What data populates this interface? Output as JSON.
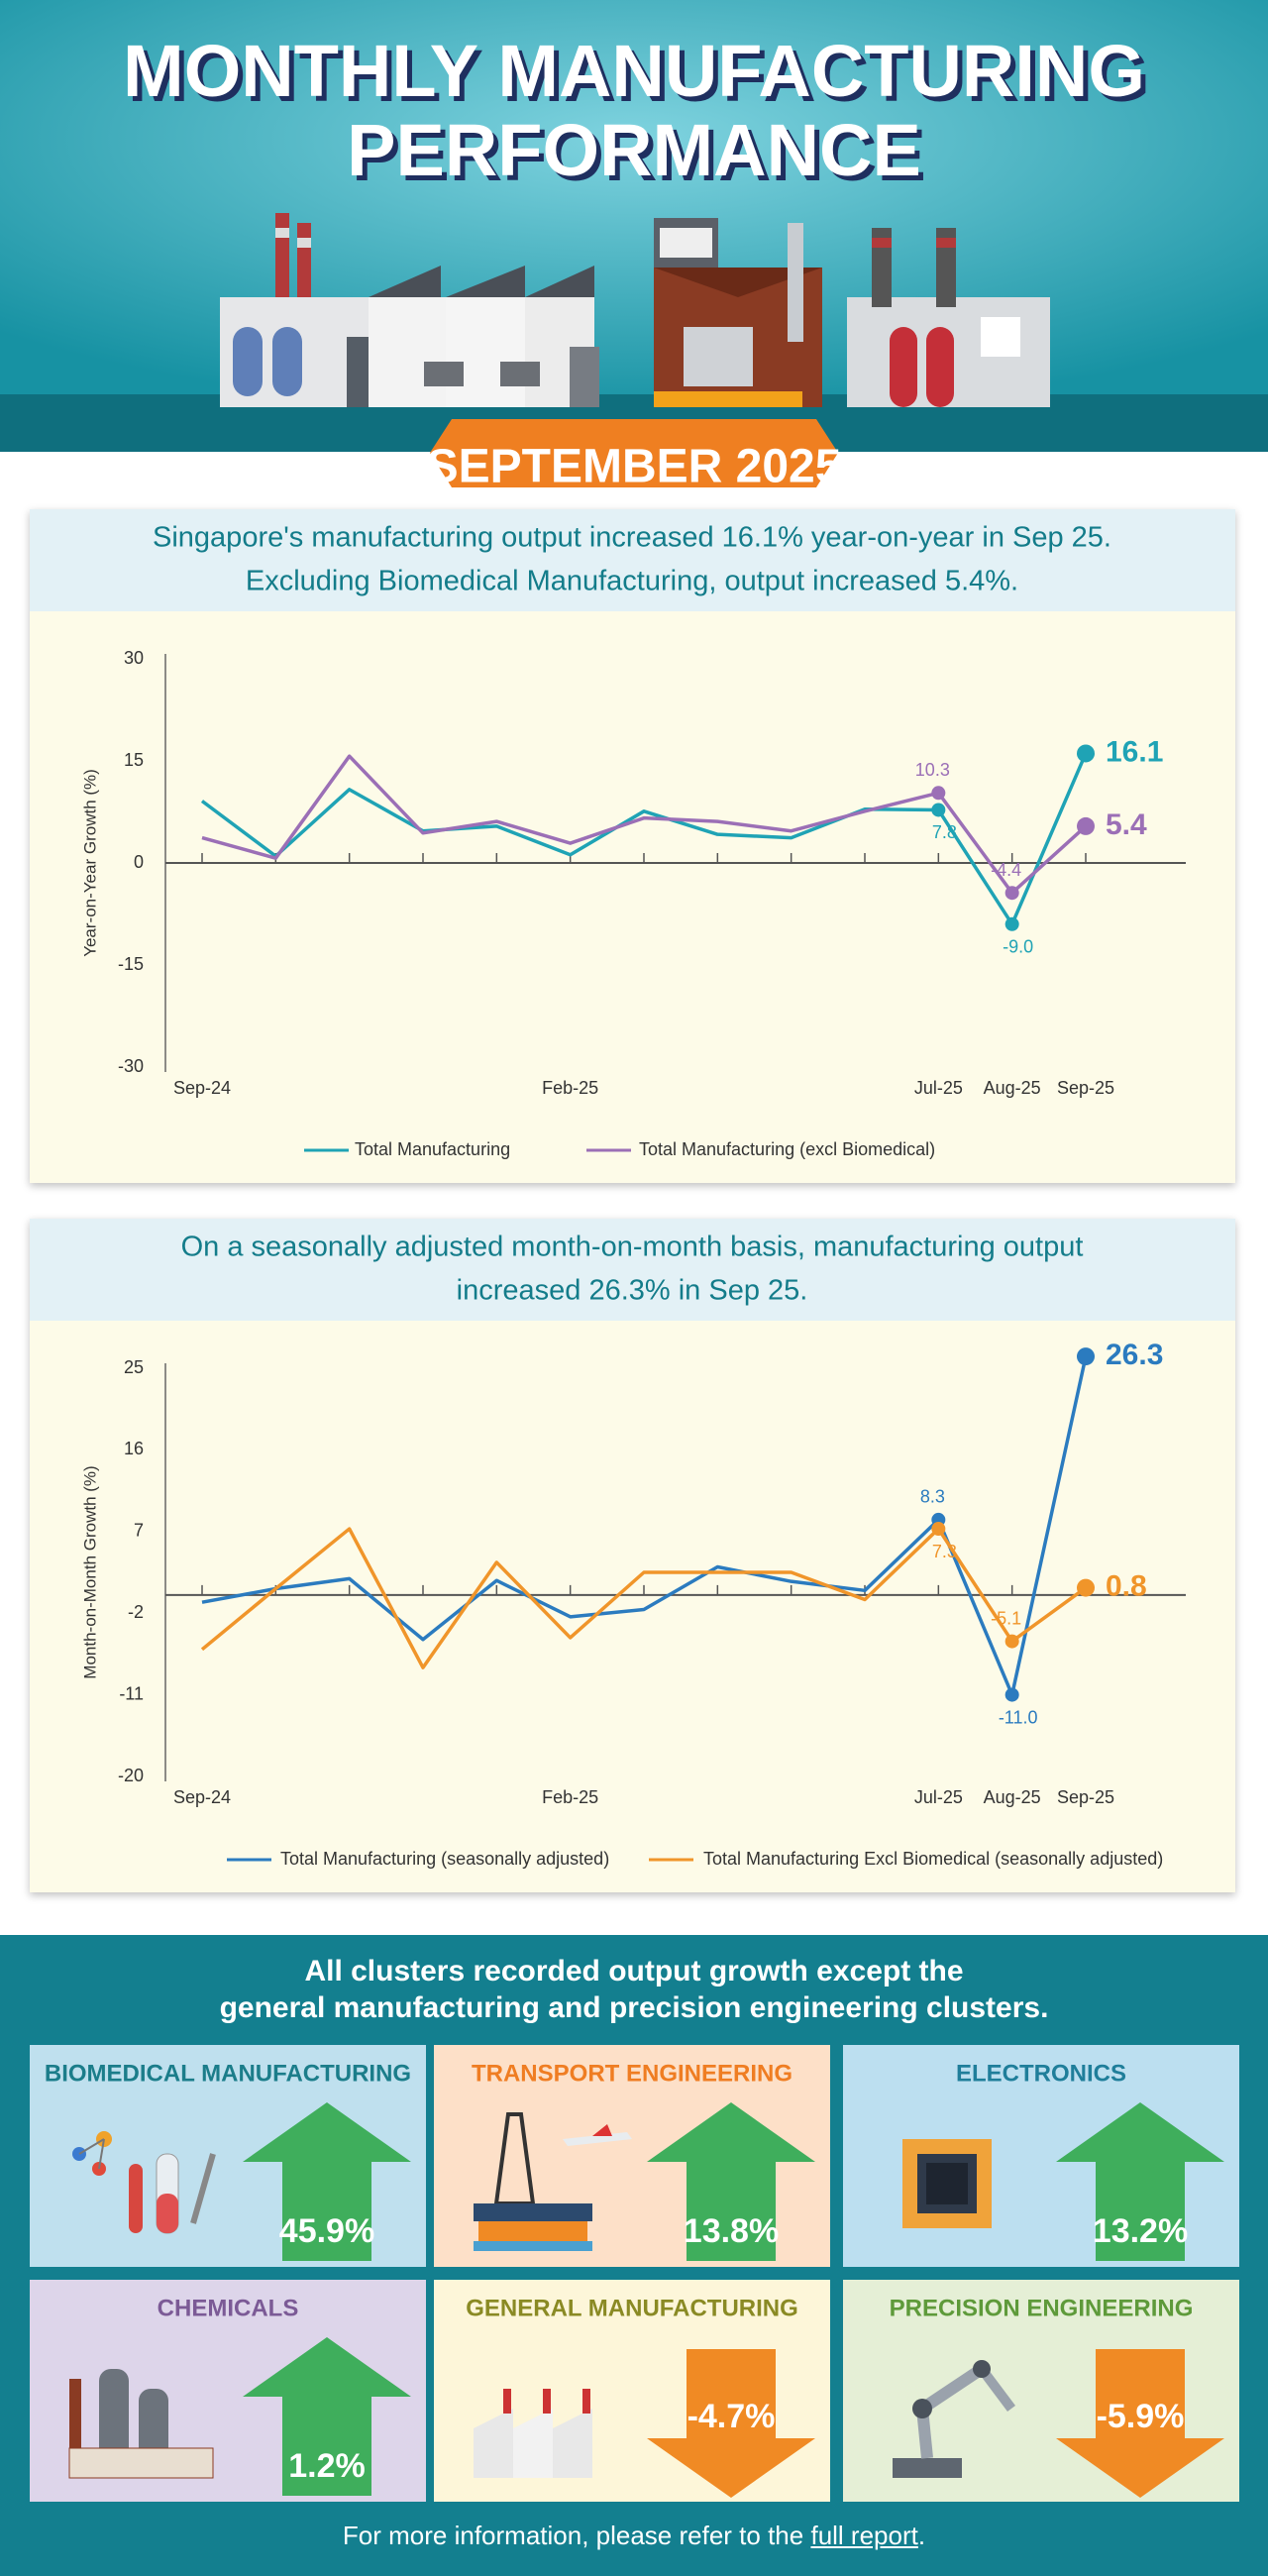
{
  "header": {
    "title": [
      "MONTHLY MANUFACTURING",
      "PERFORMANCE"
    ],
    "badge": "SEPTEMBER 2025"
  },
  "chart_data": [
    {
      "type": "line",
      "title": [
        "Singapore's manufacturing output increased 16.1% year-on-year in Sep 25.",
        "Excluding Biomedical Manufacturing, output increased 5.4%."
      ],
      "y_label": "Year-on-Year Growth (%)",
      "categories": [
        "Sep-24",
        null,
        null,
        null,
        null,
        "Feb-25",
        null,
        null,
        null,
        null,
        "Jul-25",
        "Aug-25",
        "Sep-25"
      ],
      "ylim": [
        -30,
        30
      ],
      "yticks": [
        -30,
        -15,
        0,
        15,
        30
      ],
      "grid": false,
      "series": [
        {
          "name": "Total Manufacturing",
          "color": "#1fa3b5",
          "values": [
            9.1,
            1.0,
            10.8,
            4.7,
            5.4,
            1.2,
            7.6,
            4.2,
            3.7,
            7.9,
            7.8,
            -9.0,
            16.1
          ],
          "value_labels": [
            null,
            null,
            null,
            null,
            null,
            null,
            null,
            null,
            null,
            null,
            "7.8",
            "-9.0",
            "16.1"
          ]
        },
        {
          "name": "Total Manufacturing (excl Biomedical)",
          "color": "#9b6fb6",
          "values": [
            3.7,
            0.7,
            15.7,
            4.4,
            6.1,
            2.9,
            6.6,
            6.1,
            4.7,
            7.6,
            10.3,
            -4.4,
            5.4
          ],
          "value_labels": [
            null,
            null,
            null,
            null,
            null,
            null,
            null,
            null,
            null,
            null,
            "10.3",
            "-4.4",
            "5.4"
          ]
        }
      ]
    },
    {
      "type": "line",
      "title": [
        "On a seasonally adjusted month-on-month basis, manufacturing output",
        "increased 26.3% in Sep 25."
      ],
      "y_label": "Month-on-Month Growth (%)",
      "categories": [
        "Sep-24",
        null,
        null,
        null,
        null,
        "Feb-25",
        null,
        null,
        null,
        null,
        "Jul-25",
        "Aug-25",
        "Sep-25"
      ],
      "ylim": [
        -20,
        25
      ],
      "yticks": [
        -20,
        -11,
        -2,
        7,
        16,
        25
      ],
      "grid": false,
      "series": [
        {
          "name": "Total Manufacturing (seasonally adjusted)",
          "color": "#2b7bbf",
          "values": [
            -0.8,
            0.7,
            1.8,
            -4.9,
            1.6,
            -2.4,
            -1.6,
            3.1,
            1.5,
            0.5,
            8.3,
            -11.0,
            26.3
          ],
          "value_labels": [
            null,
            null,
            null,
            null,
            null,
            null,
            null,
            null,
            null,
            null,
            "8.3",
            "-11.0",
            "26.3"
          ]
        },
        {
          "name": "Total Manufacturing Excl Biomedical (seasonally adjusted)",
          "color": "#f0952a",
          "values": [
            -6.0,
            0.7,
            7.3,
            -8.0,
            3.6,
            -4.7,
            2.5,
            2.5,
            2.5,
            -0.5,
            7.3,
            -5.1,
            0.8
          ],
          "value_labels": [
            null,
            null,
            null,
            null,
            null,
            null,
            null,
            null,
            null,
            null,
            "7.3",
            "-5.1",
            "0.8"
          ]
        }
      ]
    }
  ],
  "clusters_heading": [
    "All clusters recorded output growth except the",
    "general manufacturing and precision engineering clusters."
  ],
  "clusters": [
    {
      "name": "BIOMEDICAL MANUFACTURING",
      "value": "45.9%"
    },
    {
      "name": "TRANSPORT ENGINEERING",
      "value": "13.8%"
    },
    {
      "name": "ELECTRONICS",
      "value": "13.2%"
    },
    {
      "name": "CHEMICALS",
      "value": "1.2%"
    },
    {
      "name": "GENERAL MANUFACTURING",
      "value": "-4.7%"
    },
    {
      "name": "PRECISION ENGINEERING",
      "value": "-5.9%"
    }
  ],
  "footer": {
    "text": "For more information, please refer to the",
    "link": "full report",
    "end": "."
  }
}
